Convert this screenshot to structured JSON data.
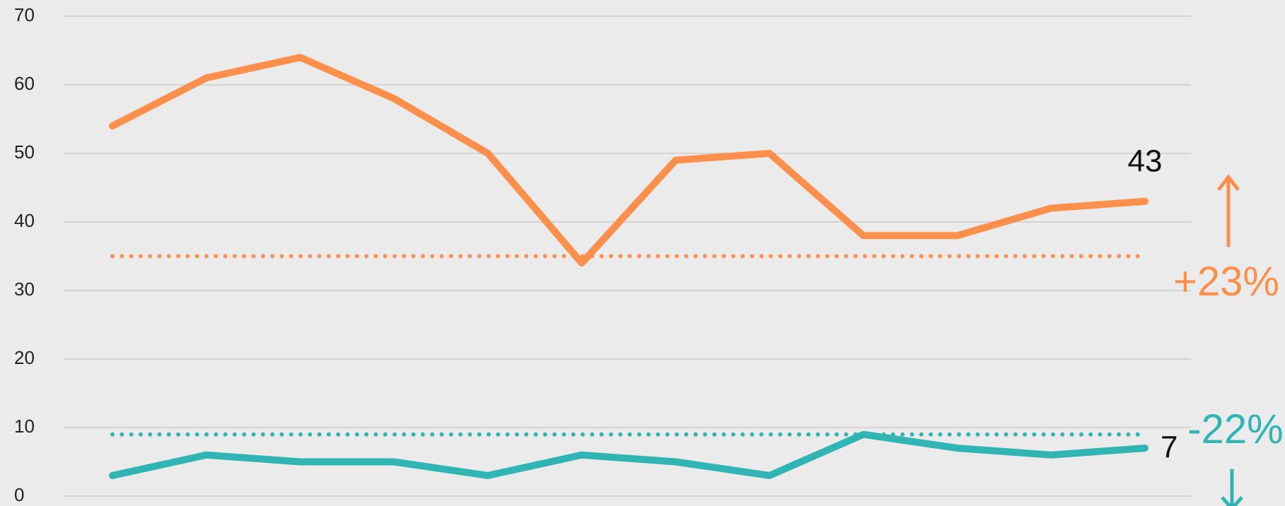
{
  "chart_data": {
    "type": "line",
    "categories": [
      null,
      null,
      null,
      null,
      null,
      null,
      null,
      null,
      null,
      null,
      null,
      null
    ],
    "series": [
      {
        "color": "#fb8f4b",
        "values": [
          54,
          61,
          64,
          58,
          50,
          34,
          49,
          50,
          38,
          38,
          42,
          43
        ],
        "reference": 35,
        "change": "+23%",
        "direction": "up"
      },
      {
        "color": "#31b4b4",
        "values": [
          3,
          6,
          5,
          5,
          3,
          6,
          5,
          3,
          9,
          7,
          6,
          7
        ],
        "reference": 9,
        "change": "-22%",
        "direction": "down"
      }
    ],
    "ylim": [
      0,
      70
    ],
    "yticks": [
      0,
      10,
      20,
      30,
      40,
      50,
      60,
      70
    ],
    "grid": true,
    "label_last": true
  }
}
